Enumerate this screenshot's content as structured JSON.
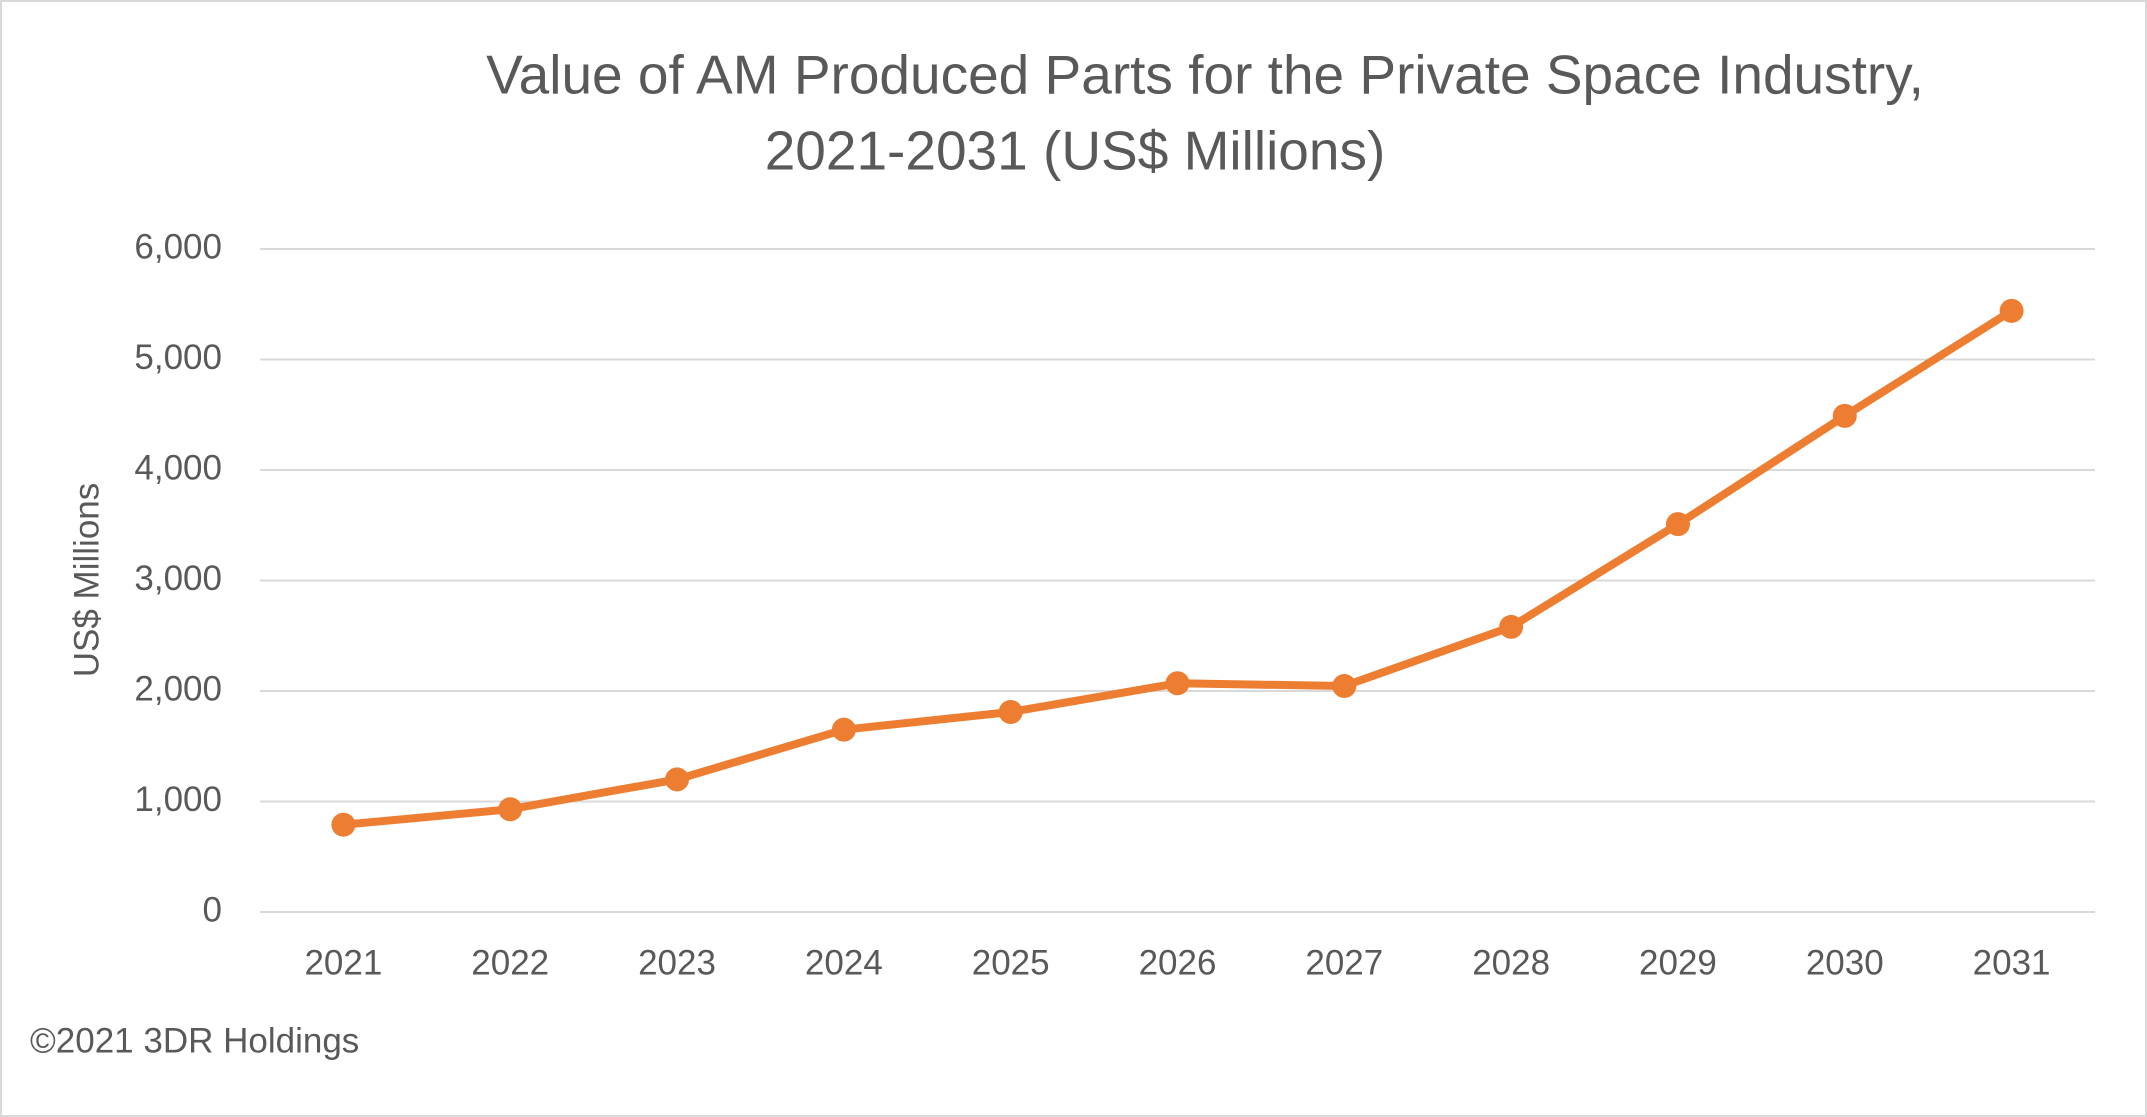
{
  "chart_data": {
    "type": "line",
    "title": [
      "Value of AM Produced Parts for the Private Space Industry,",
      "2021-2031 (US$ Millions)"
    ],
    "y_label": "US$ Millions",
    "footer": "©2021 3DR Holdings",
    "categories": [
      "2021",
      "2022",
      "2023",
      "2024",
      "2025",
      "2026",
      "2027",
      "2028",
      "2029",
      "2030",
      "2031"
    ],
    "values": [
      790,
      930,
      1200,
      1650,
      1810,
      2070,
      2045,
      2580,
      3510,
      4490,
      5440
    ],
    "color": "#ed7d31",
    "ylim": [
      0,
      6000
    ],
    "yticks": [
      0,
      {
        "value": 1000,
        "label": "1,000"
      },
      {
        "value": 2000,
        "label": "2,000"
      },
      {
        "value": 3000,
        "label": "3,000"
      },
      {
        "value": 4000,
        "label": "4,000"
      },
      {
        "value": 5000,
        "label": "5,000"
      },
      {
        "value": 6000,
        "label": "6,000"
      }
    ],
    "grid": true
  }
}
